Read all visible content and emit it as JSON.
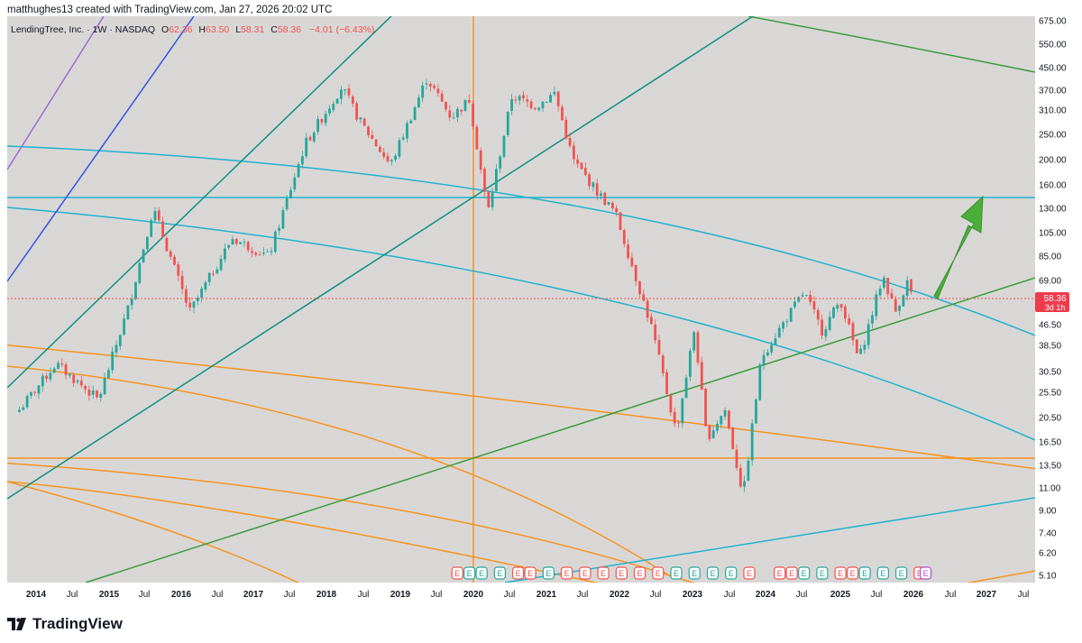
{
  "header": {
    "caption": "matthughes13 created with TradingView.com, Jan 27, 2026 20:02 UTC"
  },
  "footer": {
    "brand": "TradingView"
  },
  "legend": {
    "symbol": "LendingTree, Inc. · 1W · NASDAQ",
    "o_label": "O",
    "o_value": "62.36",
    "h_label": "H",
    "h_value": "63.50",
    "l_label": "L",
    "l_value": "58.31",
    "c_label": "C",
    "c_value": "58.36",
    "change": "−4.01 (−6.43%)"
  },
  "price_tag": {
    "value": "58.36",
    "countdown": "3d 1h"
  },
  "colors": {
    "up": "#26a69a",
    "down": "#ef5350",
    "panel_bg": "#d9d7d6",
    "orange": "#f7931e",
    "cyan": "#1fb2cd",
    "green": "#3a9b3a",
    "teal": "#0d8f7d",
    "arrow": "#4cae3a"
  },
  "earnings_marker": "E",
  "chart_data": {
    "type": "candlestick",
    "scale": "log",
    "y_ticks": [
      "675.00",
      "550.00",
      "450.00",
      "370.00",
      "310.00",
      "250.00",
      "200.00",
      "160.00",
      "130.00",
      "105.00",
      "85.00",
      "69.00",
      "58.36",
      "46.50",
      "38.50",
      "30.50",
      "25.50",
      "20.50",
      "16.50",
      "13.50",
      "11.00",
      "9.00",
      "7.40",
      "6.20",
      "5.10"
    ],
    "x_ticks": [
      "2014",
      "Jul",
      "2015",
      "Jul",
      "2016",
      "Jul",
      "2017",
      "Jul",
      "2018",
      "Jul",
      "2019",
      "Jul",
      "2020",
      "Jul",
      "2021",
      "Jul",
      "2022",
      "Jul",
      "2023",
      "Jul",
      "2024",
      "Jul",
      "2025",
      "Jul",
      "2026",
      "Jul",
      "2027",
      "Jul"
    ],
    "key_points": [
      {
        "x": "2013-10",
        "y": 22
      },
      {
        "x": "2014-04",
        "y": 33
      },
      {
        "x": "2014-11",
        "y": 24
      },
      {
        "x": "2015-04",
        "y": 55
      },
      {
        "x": "2015-08",
        "y": 130
      },
      {
        "x": "2016-02",
        "y": 52
      },
      {
        "x": "2016-09",
        "y": 100
      },
      {
        "x": "2017-03",
        "y": 85
      },
      {
        "x": "2017-09",
        "y": 230
      },
      {
        "x": "2018-03",
        "y": 380
      },
      {
        "x": "2018-06",
        "y": 280
      },
      {
        "x": "2018-11",
        "y": 190
      },
      {
        "x": "2019-05",
        "y": 410
      },
      {
        "x": "2019-09",
        "y": 290
      },
      {
        "x": "2019-12",
        "y": 340
      },
      {
        "x": "2020-03",
        "y": 125
      },
      {
        "x": "2020-07",
        "y": 350
      },
      {
        "x": "2020-11",
        "y": 320
      },
      {
        "x": "2021-02",
        "y": 360
      },
      {
        "x": "2021-05",
        "y": 200
      },
      {
        "x": "2021-09",
        "y": 150
      },
      {
        "x": "2021-12",
        "y": 125
      },
      {
        "x": "2022-03",
        "y": 75
      },
      {
        "x": "2022-06",
        "y": 45
      },
      {
        "x": "2022-10",
        "y": 18
      },
      {
        "x": "2023-01",
        "y": 45
      },
      {
        "x": "2023-03",
        "y": 17
      },
      {
        "x": "2023-06",
        "y": 22
      },
      {
        "x": "2023-09",
        "y": 10.3
      },
      {
        "x": "2023-12",
        "y": 35
      },
      {
        "x": "2024-03",
        "y": 45
      },
      {
        "x": "2024-07",
        "y": 62
      },
      {
        "x": "2024-10",
        "y": 44
      },
      {
        "x": "2025-01",
        "y": 58
      },
      {
        "x": "2025-04",
        "y": 34
      },
      {
        "x": "2025-08",
        "y": 72
      },
      {
        "x": "2025-10",
        "y": 52
      },
      {
        "x": "2025-12",
        "y": 68
      },
      {
        "x": "2026-01",
        "y": 58.36
      }
    ],
    "earnings_flags": [
      {
        "x": "2019-10",
        "kind": "down"
      },
      {
        "x": "2019-12",
        "kind": "up"
      },
      {
        "x": "2020-02",
        "kind": "up"
      },
      {
        "x": "2020-05",
        "kind": "up"
      },
      {
        "x": "2020-08",
        "kind": "down"
      },
      {
        "x": "2020-10",
        "kind": "down"
      },
      {
        "x": "2021-01",
        "kind": "up"
      },
      {
        "x": "2021-04",
        "kind": "down"
      },
      {
        "x": "2021-07",
        "kind": "down"
      },
      {
        "x": "2021-10",
        "kind": "down"
      },
      {
        "x": "2022-01",
        "kind": "down"
      },
      {
        "x": "2022-04",
        "kind": "down"
      },
      {
        "x": "2022-07",
        "kind": "down"
      },
      {
        "x": "2022-10",
        "kind": "up"
      },
      {
        "x": "2023-01",
        "kind": "up"
      },
      {
        "x": "2023-04",
        "kind": "up"
      },
      {
        "x": "2023-07",
        "kind": "up"
      },
      {
        "x": "2023-10",
        "kind": "down"
      },
      {
        "x": "2024-03",
        "kind": "down"
      },
      {
        "x": "2024-05",
        "kind": "down"
      },
      {
        "x": "2024-07",
        "kind": "up"
      },
      {
        "x": "2024-10",
        "kind": "up"
      },
      {
        "x": "2025-01",
        "kind": "down"
      },
      {
        "x": "2025-03",
        "kind": "down"
      },
      {
        "x": "2025-05",
        "kind": "up"
      },
      {
        "x": "2025-08",
        "kind": "up"
      },
      {
        "x": "2025-11",
        "kind": "up"
      },
      {
        "x": "2026-02",
        "kind": "down"
      },
      {
        "x": "2026-03",
        "kind": "future"
      }
    ]
  }
}
